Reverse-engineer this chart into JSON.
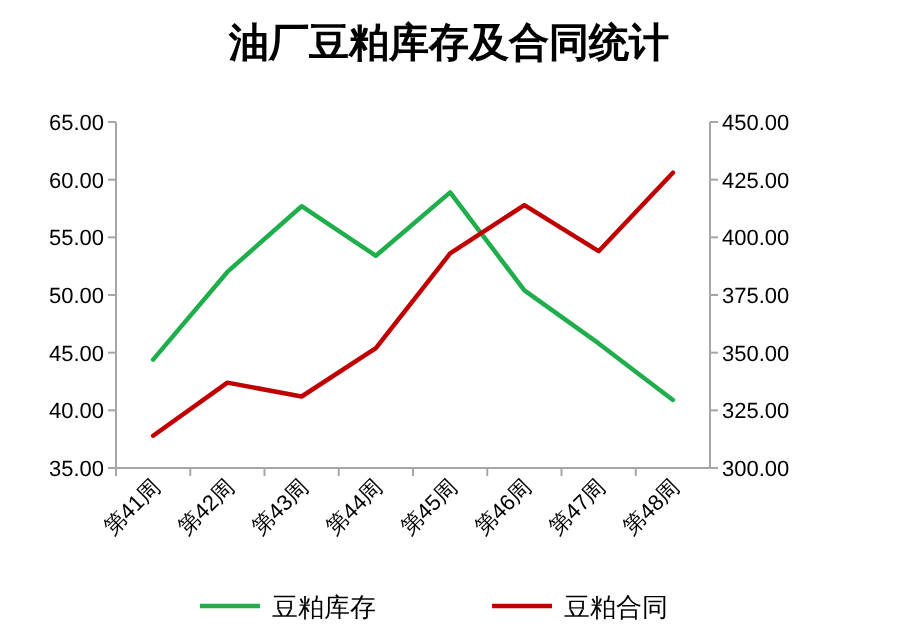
{
  "chart_data": {
    "type": "line",
    "title": "油厂豆粕库存及合同统计",
    "categories": [
      "第41周",
      "第42周",
      "第43周",
      "第44周",
      "第45周",
      "第46周",
      "第47周",
      "第48周"
    ],
    "series": [
      {
        "name": "豆粕库存",
        "color": "#1fae4b",
        "values": [
          44.4,
          52.0,
          57.7,
          53.4,
          58.9,
          50.4,
          45.8,
          40.9
        ]
      },
      {
        "name": "豆粕合同",
        "color": "#c00000",
        "axis": "y2",
        "values": [
          314,
          337,
          331,
          352,
          393,
          414,
          394,
          428
        ]
      }
    ],
    "ylim": [
      35,
      65
    ],
    "yticks": [
      {
        "value": 35,
        "label": "35.00"
      },
      {
        "value": 40,
        "label": "40.00"
      },
      {
        "value": 45,
        "label": "45.00"
      },
      {
        "value": 50,
        "label": "50.00"
      },
      {
        "value": 55,
        "label": "55.00"
      },
      {
        "value": 60,
        "label": "60.00"
      },
      {
        "value": 65,
        "label": "65.00"
      }
    ],
    "y2lim": [
      300,
      450
    ],
    "y2ticks": [
      {
        "value": 300,
        "label": "300.00"
      },
      {
        "value": 325,
        "label": "325.00"
      },
      {
        "value": 350,
        "label": "350.00"
      },
      {
        "value": 375,
        "label": "375.00"
      },
      {
        "value": 400,
        "label": "400.00"
      },
      {
        "value": 425,
        "label": "425.00"
      },
      {
        "value": 450,
        "label": "450.00"
      }
    ],
    "grid": false,
    "legend": "bottom",
    "marker": "none",
    "line_style": "solid"
  }
}
